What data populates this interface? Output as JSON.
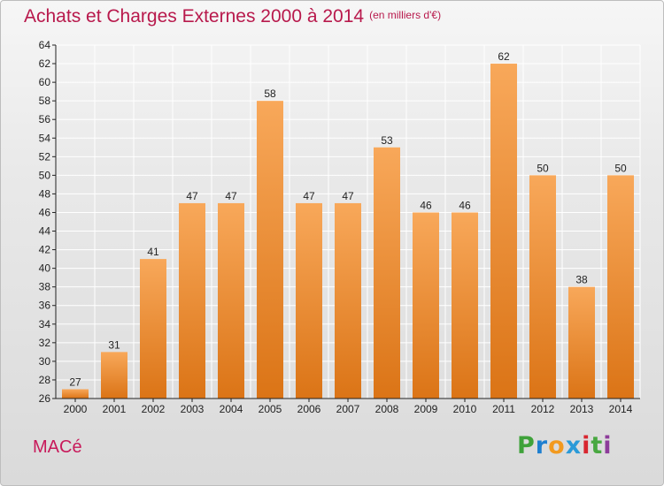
{
  "title": "Achats et Charges Externes 2000 à 2014",
  "unit": "(en milliers d'€)",
  "commune": "MACé",
  "logo": "Proxiti",
  "colors": {
    "title": "#b8194c",
    "bar_top": "#f8a85a",
    "bar_bottom": "#db7416",
    "axis": "#222222",
    "grid": "#ffffff"
  },
  "chart_data": {
    "type": "bar",
    "categories": [
      "2000",
      "2001",
      "2002",
      "2003",
      "2004",
      "2005",
      "2006",
      "2007",
      "2008",
      "2009",
      "2010",
      "2011",
      "2012",
      "2013",
      "2014"
    ],
    "values": [
      27,
      31,
      41,
      47,
      47,
      58,
      47,
      47,
      53,
      46,
      46,
      62,
      50,
      38,
      50
    ],
    "ylim": [
      26,
      64
    ],
    "yticks": [
      26,
      28,
      30,
      32,
      34,
      36,
      38,
      40,
      42,
      44,
      46,
      48,
      50,
      52,
      54,
      56,
      58,
      60,
      62,
      64
    ],
    "grid": true,
    "data_labels": true
  }
}
